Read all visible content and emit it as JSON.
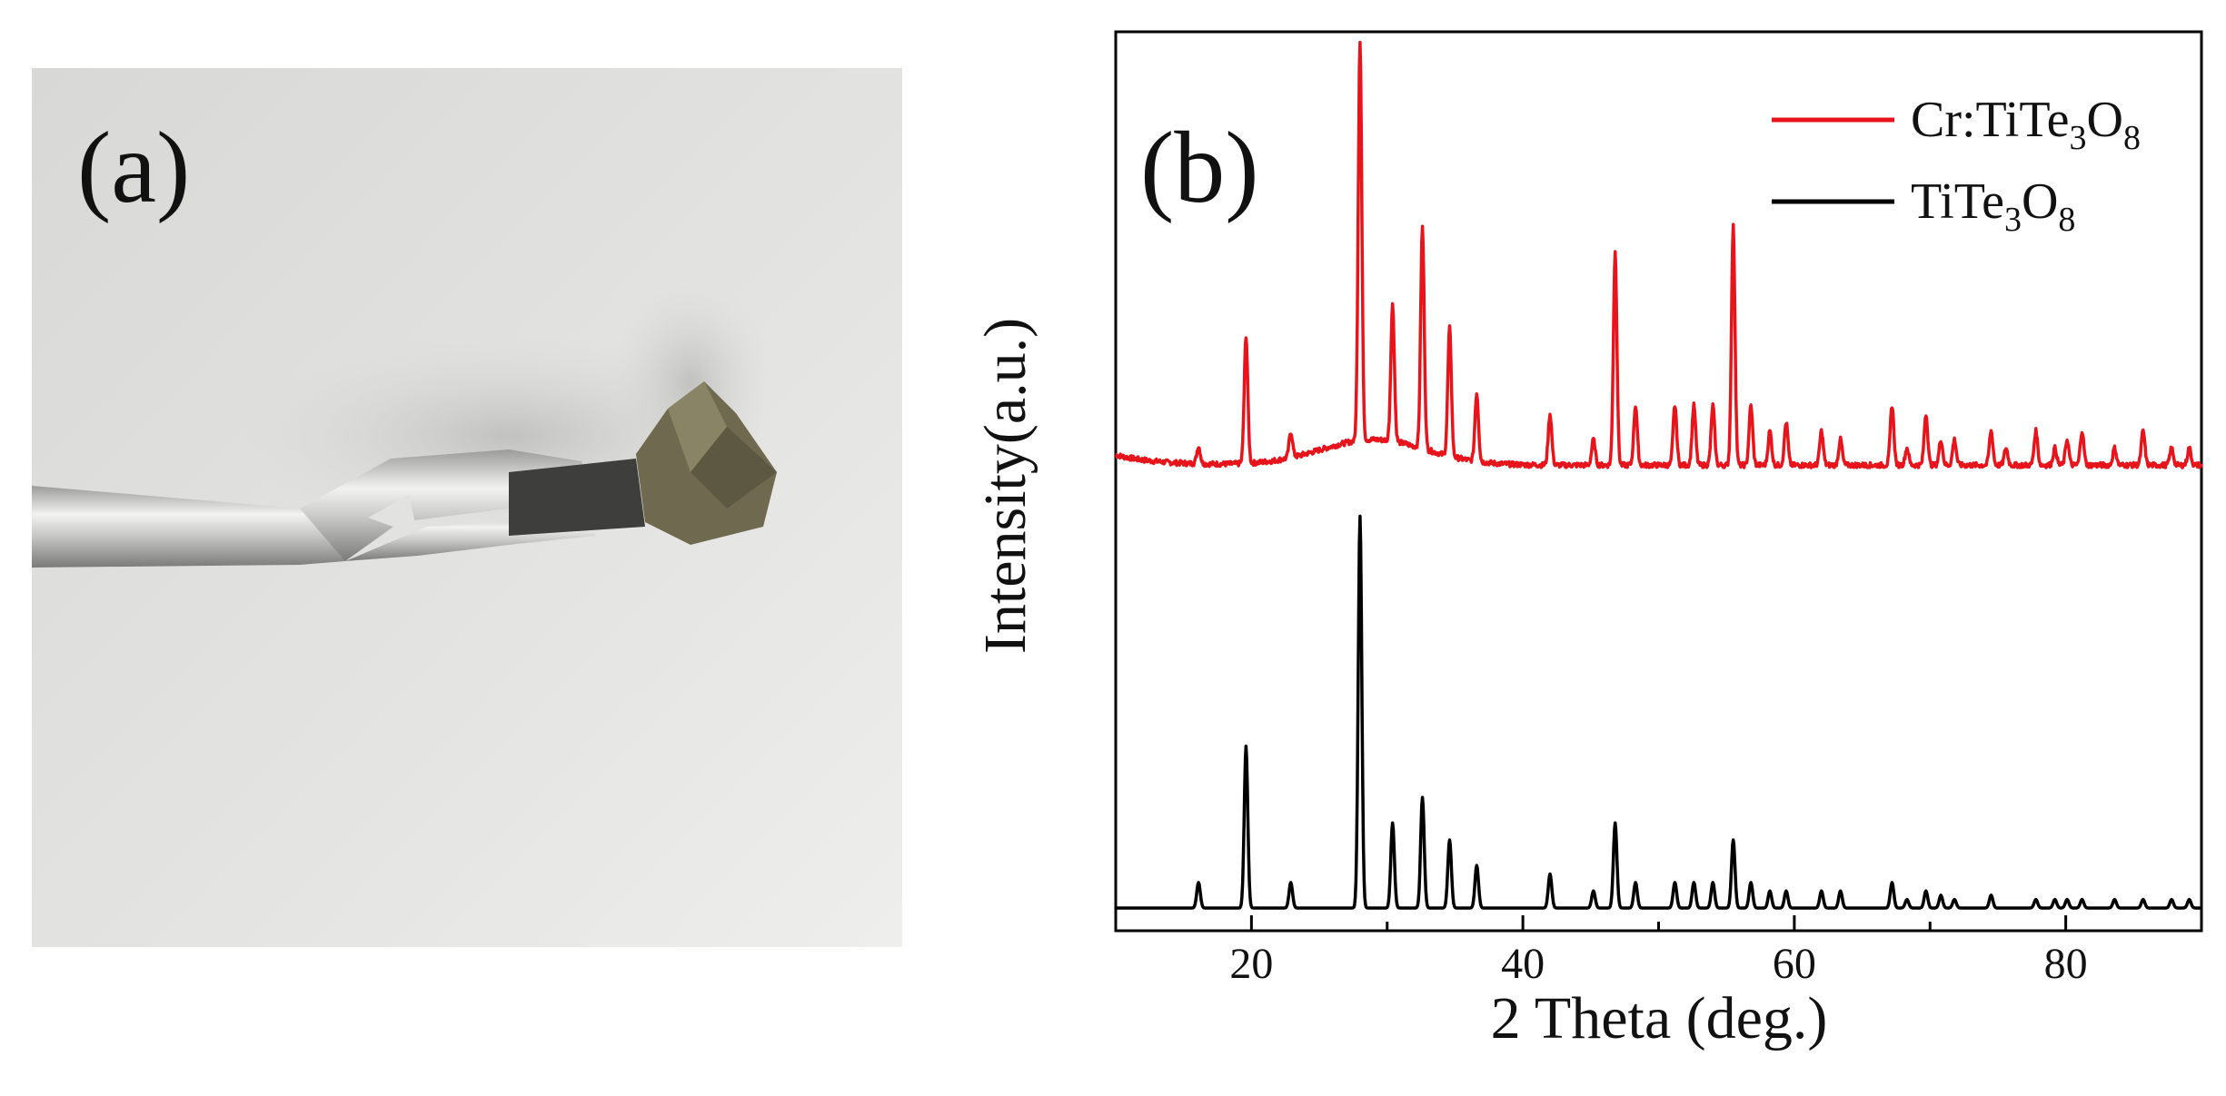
{
  "panel_a": {
    "label": "(a)",
    "description_icon": "crystal-on-wire-photo"
  },
  "panel_b": {
    "label": "(b)"
  },
  "colors": {
    "cr_series": "#e8141b",
    "base_series": "#000000",
    "photo_bg": "#dcdcd8",
    "wire": "#c8c8c6",
    "crystal": "#6f6a4f"
  },
  "chart_data": {
    "type": "line",
    "title": "",
    "xlabel": "2 Theta (deg.)",
    "ylabel": "Intensity(a.u.)",
    "xlim": [
      10,
      90
    ],
    "x_ticks": [
      20,
      40,
      60,
      80
    ],
    "y_ticks": [],
    "legend": "top-right",
    "series": [
      {
        "name": "Cr:TiTe3O8",
        "legend_main": "Cr:TiTe",
        "legend_sub1": "3",
        "legend_mid": "O",
        "legend_sub2": "8",
        "baseline": 0.52,
        "hump": 0.03,
        "peaks": [
          [
            16.1,
            0.02
          ],
          [
            19.6,
            0.15
          ],
          [
            22.9,
            0.03
          ],
          [
            28.0,
            0.47
          ],
          [
            30.4,
            0.16
          ],
          [
            32.6,
            0.26
          ],
          [
            34.6,
            0.15
          ],
          [
            36.6,
            0.08
          ],
          [
            42.0,
            0.06
          ],
          [
            45.2,
            0.03
          ],
          [
            46.8,
            0.25
          ],
          [
            48.3,
            0.07
          ],
          [
            51.2,
            0.07
          ],
          [
            52.6,
            0.07
          ],
          [
            54.0,
            0.07
          ],
          [
            55.5,
            0.28
          ],
          [
            56.8,
            0.07
          ],
          [
            58.2,
            0.04
          ],
          [
            59.4,
            0.05
          ],
          [
            62.0,
            0.04
          ],
          [
            63.4,
            0.03
          ],
          [
            67.2,
            0.07
          ],
          [
            68.3,
            0.02
          ],
          [
            69.7,
            0.06
          ],
          [
            70.8,
            0.03
          ],
          [
            71.8,
            0.03
          ],
          [
            74.5,
            0.04
          ],
          [
            75.6,
            0.02
          ],
          [
            77.8,
            0.04
          ],
          [
            79.2,
            0.02
          ],
          [
            80.1,
            0.03
          ],
          [
            81.2,
            0.04
          ],
          [
            83.6,
            0.02
          ],
          [
            85.7,
            0.04
          ],
          [
            87.8,
            0.02
          ],
          [
            89.1,
            0.02
          ]
        ]
      },
      {
        "name": "TiTe3O8",
        "legend_main": "TiTe",
        "legend_sub1": "3",
        "legend_mid": "O",
        "legend_sub2": "8",
        "baseline": 0.0,
        "hump": 0.0,
        "peaks": [
          [
            16.1,
            0.03
          ],
          [
            19.6,
            0.19
          ],
          [
            22.9,
            0.03
          ],
          [
            28.0,
            0.46
          ],
          [
            30.4,
            0.1
          ],
          [
            32.6,
            0.13
          ],
          [
            34.6,
            0.08
          ],
          [
            36.6,
            0.05
          ],
          [
            42.0,
            0.04
          ],
          [
            45.2,
            0.02
          ],
          [
            46.8,
            0.1
          ],
          [
            48.3,
            0.03
          ],
          [
            51.2,
            0.03
          ],
          [
            52.6,
            0.03
          ],
          [
            54.0,
            0.03
          ],
          [
            55.5,
            0.08
          ],
          [
            56.8,
            0.03
          ],
          [
            58.2,
            0.02
          ],
          [
            59.4,
            0.02
          ],
          [
            62.0,
            0.02
          ],
          [
            63.4,
            0.02
          ],
          [
            67.2,
            0.03
          ],
          [
            68.3,
            0.01
          ],
          [
            69.7,
            0.02
          ],
          [
            70.8,
            0.015
          ],
          [
            71.8,
            0.01
          ],
          [
            74.5,
            0.015
          ],
          [
            77.8,
            0.01
          ],
          [
            79.2,
            0.01
          ],
          [
            80.1,
            0.01
          ],
          [
            81.2,
            0.01
          ],
          [
            83.6,
            0.01
          ],
          [
            85.7,
            0.01
          ],
          [
            87.8,
            0.01
          ],
          [
            89.1,
            0.01
          ]
        ]
      }
    ]
  }
}
